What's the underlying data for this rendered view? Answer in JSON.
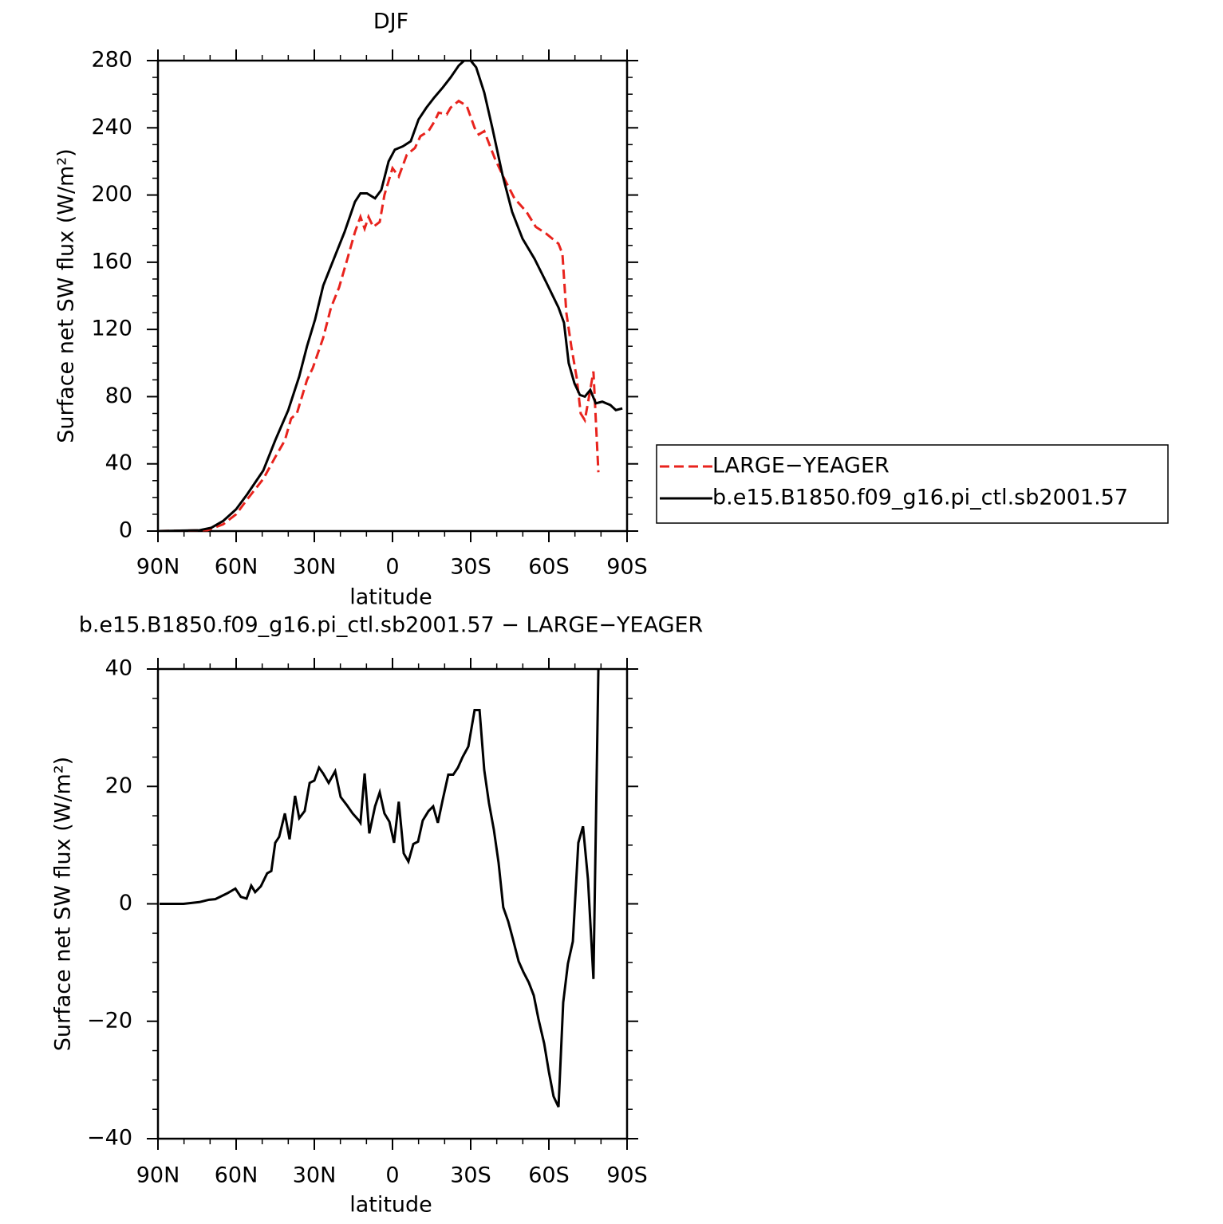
{
  "chart_data": [
    {
      "type": "line",
      "title": "DJF",
      "xlabel": "latitude",
      "ylabel": "Surface net SW flux (W/m²)",
      "xlim": [
        90,
        -90
      ],
      "ylim": [
        0,
        280
      ],
      "xticks": [
        {
          "value": 90,
          "label": "90N"
        },
        {
          "value": 60,
          "label": "60N"
        },
        {
          "value": 30,
          "label": "30N"
        },
        0,
        {
          "value": -30,
          "label": "30S"
        },
        {
          "value": -60,
          "label": "60S"
        },
        {
          "value": -90,
          "label": "90S"
        }
      ],
      "yticks": [
        0,
        40,
        80,
        120,
        160,
        200,
        240,
        280
      ],
      "legend": "right",
      "series": [
        {
          "name": "LARGE−YEAGER",
          "color": "#e8231d",
          "dash": true,
          "x": [
            89.4,
            71,
            65,
            60,
            55.7,
            49.6,
            45,
            41.3,
            38.9,
            36.7,
            32.8,
            30.6,
            26.6,
            23.6,
            20.5,
            17.5,
            14.4,
            12.3,
            10.7,
            9.2,
            7.4,
            4.9,
            3.1,
            0,
            -2.4,
            -5.5,
            -8.6,
            -10.7,
            -13.8,
            -16.2,
            -17.7,
            -20.8,
            -22.3,
            -25.4,
            -28.5,
            -31.5,
            -33.1,
            -35.2,
            -39.2,
            -42.8,
            -46.8,
            -51.4,
            -55,
            -59,
            -63.7,
            -65.2,
            -66.7,
            -68.6,
            -70.7,
            -72.2,
            -73.8,
            -75.3,
            -77.1,
            -79
          ],
          "values": [
            0,
            0.5,
            4,
            10,
            19,
            31,
            44,
            54,
            67,
            70,
            90,
            97,
            115,
            133,
            145,
            161,
            178,
            187,
            180,
            187,
            181,
            184,
            200,
            216,
            211,
            224,
            228,
            235,
            238,
            244,
            249,
            248,
            252,
            256,
            253,
            240,
            236,
            238,
            222,
            210,
            198,
            190,
            181,
            177,
            171,
            165,
            130,
            110,
            91,
            70,
            66,
            79,
            95,
            35
          ]
        },
        {
          "name": "b.e15.B1850.f09_g16.pi_ctl.sb2001.57",
          "color": "#000000",
          "dash": false,
          "x": [
            89.4,
            74,
            69.5,
            65,
            60,
            55.7,
            49.6,
            45,
            40,
            35.8,
            32.8,
            29.7,
            26.6,
            22,
            18.4,
            14.4,
            12.3,
            9.8,
            6.7,
            4.3,
            1.5,
            -0.9,
            -4,
            -7,
            -10,
            -13,
            -16,
            -19.3,
            -22.3,
            -25.4,
            -27.5,
            -30,
            -32.1,
            -35.2,
            -38.3,
            -42.2,
            -45.9,
            -49.9,
            -54.5,
            -59,
            -63.7,
            -65.8,
            -67.6,
            -69.8,
            -71.9,
            -73.8,
            -75.9,
            -78,
            -80.5,
            -83.6,
            -85.7,
            -88.2
          ],
          "values": [
            0,
            0.5,
            2,
            6,
            13,
            22,
            36,
            54,
            72,
            92,
            110,
            126,
            146,
            164,
            178,
            196,
            201,
            201,
            198,
            203,
            220,
            227,
            229,
            232,
            245,
            252,
            258,
            264,
            270,
            277,
            280,
            280,
            276,
            261,
            240,
            212,
            190,
            174,
            162,
            148,
            133,
            124,
            100,
            88,
            81,
            80,
            84,
            76,
            77,
            75,
            72,
            73
          ]
        }
      ]
    },
    {
      "type": "line",
      "title": "b.e15.B1850.f09_g16.pi_ctl.sb2001.57 − LARGE−YEAGER",
      "xlabel": "latitude",
      "ylabel": "Surface net SW flux (W/m²)",
      "xlim": [
        90,
        -90
      ],
      "ylim": [
        -40,
        40
      ],
      "xticks": [
        {
          "value": 90,
          "label": "90N"
        },
        {
          "value": 60,
          "label": "60N"
        },
        {
          "value": 30,
          "label": "30N"
        },
        0,
        {
          "value": -30,
          "label": "30S"
        },
        {
          "value": -60,
          "label": "60S"
        },
        {
          "value": -90,
          "label": "90S"
        }
      ],
      "yticks": [
        {
          "value": -40,
          "label": "−40"
        },
        {
          "value": -20,
          "label": "−20"
        },
        0,
        20,
        40
      ],
      "series": [
        {
          "color": "#000000",
          "dash": false,
          "x": [
            89.4,
            80.2,
            74.1,
            70.4,
            68,
            63.4,
            60.3,
            58.2,
            56,
            54.2,
            52.7,
            50.5,
            48.1,
            46.5,
            45,
            43.5,
            41.3,
            39.5,
            37.4,
            35.8,
            33.7,
            31.8,
            30,
            28.2,
            26.6,
            24.5,
            22,
            19.9,
            17.5,
            15.3,
            12.9,
            12.3,
            10.7,
            8.9,
            6.7,
            4.9,
            3.1,
            1.2,
            -0.6,
            -2.4,
            -4.3,
            -6.1,
            -8,
            -9.8,
            -11.6,
            -13.8,
            -15.6,
            -17.4,
            -19.3,
            -21.4,
            -23.3,
            -25.1,
            -26.9,
            -29.1,
            -31.5,
            -33.4,
            -35.2,
            -37,
            -38.9,
            -40.7,
            -42.5,
            -44.4,
            -46.2,
            -48.4,
            -50.2,
            -52.3,
            -54.2,
            -56,
            -58.2,
            -60,
            -61.8,
            -63.7,
            -65.5,
            -67.3,
            -69.2,
            -71.3,
            -73.1,
            -75,
            -77.1,
            -79
          ],
          "values": [
            0,
            0,
            0.3,
            0.7,
            0.8,
            1.8,
            2.6,
            1.2,
            0.9,
            3.1,
            2,
            3,
            5.2,
            5.6,
            10.4,
            11.4,
            15.4,
            11,
            18.4,
            14.6,
            15.8,
            20.6,
            21,
            23.2,
            22.2,
            20.6,
            22.6,
            18.2,
            16.8,
            15.4,
            14.2,
            13.8,
            22.2,
            12,
            16.6,
            19,
            15.4,
            14,
            10.4,
            17.4,
            8.6,
            7.2,
            10.2,
            10.6,
            14.2,
            15.8,
            16.6,
            13.8,
            17.8,
            22,
            22,
            23.2,
            25,
            26.8,
            33,
            33,
            22.8,
            17.2,
            12.6,
            7,
            -0.6,
            -3,
            -6,
            -9.8,
            -11.6,
            -13.4,
            -15.6,
            -19.6,
            -23.8,
            -28.6,
            -32.8,
            -34.6,
            -16.8,
            -10.2,
            -6.4,
            10.4,
            13.2,
            4.2,
            -12.8,
            40
          ]
        }
      ]
    }
  ]
}
